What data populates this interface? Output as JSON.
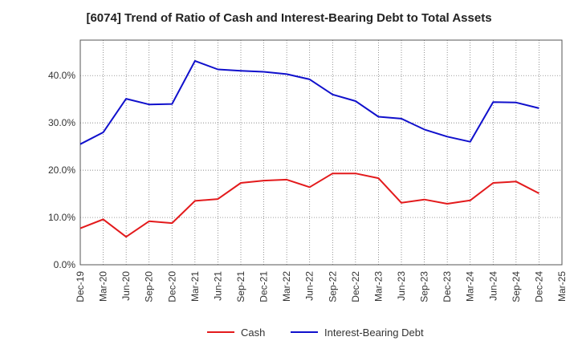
{
  "chart_data": {
    "type": "line",
    "title": "[6074]  Trend of Ratio of Cash and Interest-Bearing Debt to Total Assets",
    "xlabel": "",
    "ylabel": "",
    "categories": [
      "Dec-19",
      "Mar-20",
      "Jun-20",
      "Sep-20",
      "Dec-20",
      "Mar-21",
      "Jun-21",
      "Sep-21",
      "Dec-21",
      "Mar-22",
      "Jun-22",
      "Sep-22",
      "Dec-22",
      "Mar-23",
      "Jun-23",
      "Sep-23",
      "Dec-23",
      "Mar-24",
      "Jun-24",
      "Sep-24",
      "Dec-24",
      "Mar-25"
    ],
    "ylim": [
      0,
      47.5
    ],
    "yticks": [
      0,
      10,
      20,
      30,
      40
    ],
    "ytick_labels": [
      "0.0%",
      "10.0%",
      "20.0%",
      "30.0%",
      "40.0%"
    ],
    "grid": true,
    "legend_position": "bottom",
    "series": [
      {
        "name": "Cash",
        "color": "#e31a1c",
        "values": [
          7.7,
          9.6,
          5.9,
          9.2,
          8.8,
          13.5,
          13.9,
          17.3,
          17.8,
          18.0,
          16.4,
          19.3,
          19.3,
          18.3,
          13.1,
          13.8,
          12.9,
          13.6,
          17.3,
          17.6,
          15.1,
          null
        ]
      },
      {
        "name": "Interest-Bearing Debt",
        "color": "#1010cc",
        "values": [
          25.5,
          28.0,
          35.1,
          33.9,
          34.0,
          43.1,
          41.3,
          41.0,
          40.8,
          40.3,
          39.2,
          36.0,
          34.6,
          31.3,
          30.9,
          28.6,
          27.1,
          26.0,
          34.4,
          34.3,
          33.1,
          null
        ]
      }
    ]
  }
}
